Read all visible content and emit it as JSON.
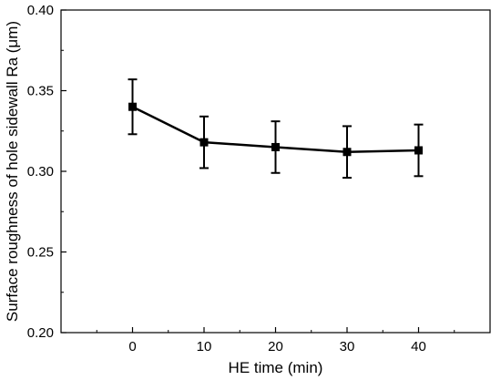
{
  "chart_data": {
    "type": "line",
    "title": "",
    "xlabel": "HE time (min)",
    "ylabel": "Surface roughness of hole sidewall Ra (μm)",
    "x": [
      0,
      10,
      20,
      30,
      40
    ],
    "xticks": [
      "0",
      "10",
      "20",
      "30",
      "40"
    ],
    "xlim": [
      -10,
      50
    ],
    "ylim": [
      0.2,
      0.4
    ],
    "yticks": [
      "0.20",
      "0.25",
      "0.30",
      "0.35",
      "0.40"
    ],
    "grid": false,
    "series": [
      {
        "values": [
          0.34,
          0.318,
          0.315,
          0.312,
          0.313
        ],
        "error": [
          0.017,
          0.016,
          0.016,
          0.016,
          0.016
        ],
        "marker": "square",
        "color": "#000000"
      }
    ]
  }
}
